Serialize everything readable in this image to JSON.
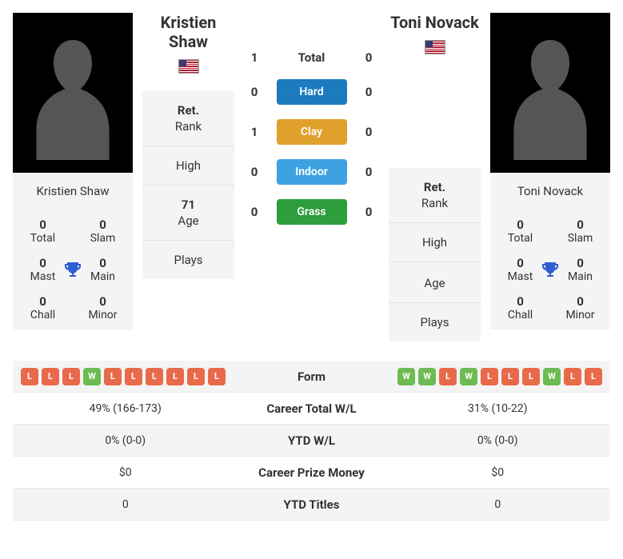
{
  "colors": {
    "win": "#6dbb52",
    "loss": "#e86a4a",
    "hard": "#1c7abf",
    "clay": "#e0a02c",
    "indoor": "#3ea2e2",
    "grass": "#2e9d3e",
    "trophy": "#2f5fd1",
    "card_bg": "#f4f4f4",
    "row_alt": "#f4f4f4"
  },
  "player1": {
    "name_full": "Kristien Shaw",
    "name_line1": "Kristien",
    "name_line2": "Shaw",
    "titles": {
      "total": "0",
      "slam": "0",
      "mast": "0",
      "main": "0",
      "chall": "0",
      "minor": "0"
    },
    "labels": {
      "total": "Total",
      "slam": "Slam",
      "mast": "Mast",
      "main": "Main",
      "chall": "Chall",
      "minor": "Minor"
    },
    "rank_label": "Ret.",
    "rank_sub": "Rank",
    "high_label": "High",
    "age_val": "71",
    "age_label": "Age",
    "plays_label": "Plays"
  },
  "player2": {
    "name_full": "Toni Novack",
    "name_line1": "Toni",
    "name_line2": "Novack",
    "titles": {
      "total": "0",
      "slam": "0",
      "mast": "0",
      "main": "0",
      "chall": "0",
      "minor": "0"
    },
    "labels": {
      "total": "Total",
      "slam": "Slam",
      "mast": "Mast",
      "main": "Main",
      "chall": "Chall",
      "minor": "Minor"
    },
    "rank_label": "Ret.",
    "rank_sub": "Rank",
    "high_label": "High",
    "age_val": "",
    "age_label": "Age",
    "plays_label": "Plays"
  },
  "h2h": {
    "total": {
      "p1": "1",
      "p2": "0",
      "label": "Total"
    },
    "hard": {
      "p1": "0",
      "p2": "0",
      "label": "Hard"
    },
    "clay": {
      "p1": "1",
      "p2": "0",
      "label": "Clay"
    },
    "indoor": {
      "p1": "0",
      "p2": "0",
      "label": "Indoor"
    },
    "grass": {
      "p1": "0",
      "p2": "0",
      "label": "Grass"
    }
  },
  "stats": {
    "form": {
      "label": "Form",
      "p1": [
        "L",
        "L",
        "L",
        "W",
        "L",
        "L",
        "L",
        "L",
        "L",
        "L"
      ],
      "p2": [
        "W",
        "W",
        "L",
        "W",
        "L",
        "L",
        "L",
        "W",
        "L",
        "L"
      ]
    },
    "career_wl": {
      "label": "Career Total W/L",
      "p1": "49% (166-173)",
      "p2": "31% (10-22)"
    },
    "ytd_wl": {
      "label": "YTD W/L",
      "p1": "0% (0-0)",
      "p2": "0% (0-0)"
    },
    "prize": {
      "label": "Career Prize Money",
      "p1": "$0",
      "p2": "$0"
    },
    "ytd_titles": {
      "label": "YTD Titles",
      "p1": "0",
      "p2": "0"
    }
  }
}
